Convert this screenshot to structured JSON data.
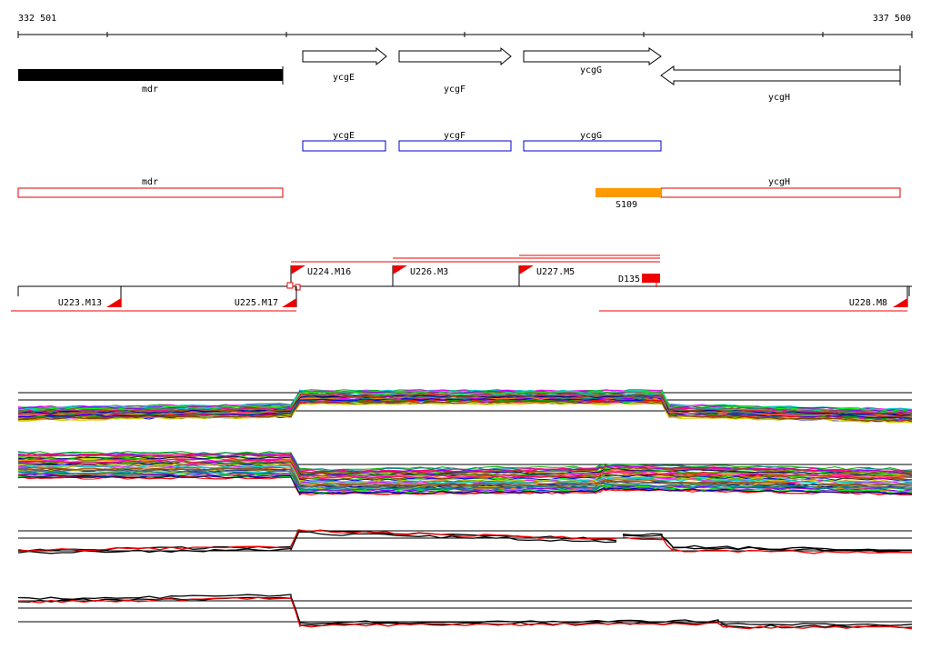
{
  "ruler": {
    "start": "332 501",
    "end": "337 500"
  },
  "genes": [
    {
      "id": "mdr",
      "label": "mdr"
    },
    {
      "id": "ycgE",
      "label": "ycgE"
    },
    {
      "id": "ycgF",
      "label": "ycgF"
    },
    {
      "id": "ycgG",
      "label": "ycgG"
    },
    {
      "id": "ycgH",
      "label": "ycgH"
    }
  ],
  "cds_track": [
    {
      "id": "ycgE",
      "label": "ycgE"
    },
    {
      "id": "ycgF",
      "label": "ycgF"
    },
    {
      "id": "ycgG",
      "label": "ycgG"
    }
  ],
  "transcripts": [
    {
      "id": "mdr",
      "label": "mdr"
    },
    {
      "id": "ycgH",
      "label": "ycgH"
    },
    {
      "id": "S109",
      "label": "S109",
      "color": "#ff9900"
    }
  ],
  "tu_features": [
    {
      "id": "U224.M16",
      "label": "U224.M16"
    },
    {
      "id": "U226.M3",
      "label": "U226.M3"
    },
    {
      "id": "U227.M5",
      "label": "U227.M5"
    },
    {
      "id": "D135",
      "label": "D135"
    },
    {
      "id": "U223.M13",
      "label": "U223.M13"
    },
    {
      "id": "U225.M17",
      "label": "U225.M17"
    },
    {
      "id": "U228.M8",
      "label": "U228.M8"
    }
  ],
  "colors": {
    "cds_outline": "#0000cc",
    "transcript_outline": "#e00000",
    "feature_red": "#ee0000",
    "operon_orange": "#ff9900"
  }
}
